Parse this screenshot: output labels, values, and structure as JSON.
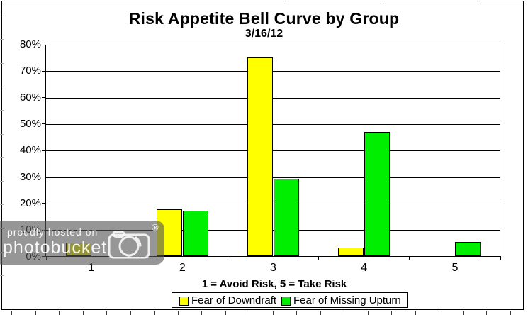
{
  "header": {
    "title": "Risk Appetite Bell Curve by Group",
    "subtitle": "3/16/12"
  },
  "chart_data": {
    "type": "bar",
    "categories": [
      "1",
      "2",
      "3",
      "4",
      "5"
    ],
    "series": [
      {
        "name": "Fear of Downdraft",
        "color": "#FFFF00",
        "values": [
          5.2,
          17.9,
          75.3,
          3.4,
          0
        ]
      },
      {
        "name": "Fear of Missing Upturn",
        "color": "#00EE00",
        "values": [
          0,
          17.4,
          29.3,
          47.1,
          5.6
        ]
      }
    ],
    "title": "Risk Appetite Bell Curve by Group",
    "subtitle": "3/16/12",
    "xlabel": "1 = Avoid Risk, 5 = Take Risk",
    "ylabel": "",
    "ylim": [
      0,
      80
    ],
    "ytick_step": 10,
    "yticks": [
      "0%",
      "10%",
      "20%",
      "30%",
      "40%",
      "50%",
      "60%",
      "70%",
      "80%"
    ],
    "grid": true,
    "legend_position": "bottom",
    "bar_border_color": "#000000",
    "plot_border_color": "#888888"
  },
  "watermark": {
    "line1": "proudly hosted on",
    "line2": "photobucket",
    "registered": "®",
    "camera": "camera-icon"
  }
}
